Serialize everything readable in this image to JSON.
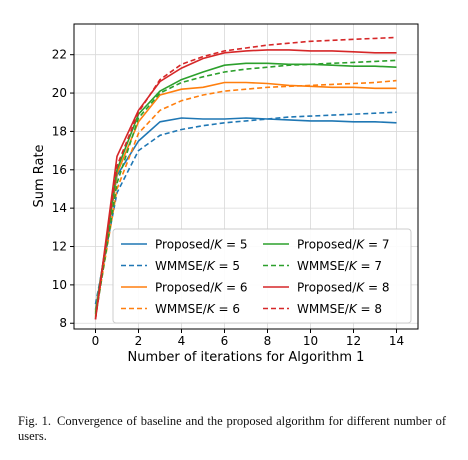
{
  "chart_data": {
    "type": "line",
    "xlabel": "Number of iterations for Algorithm 1",
    "ylabel": "Sum Rate",
    "xlim": [
      -1,
      15
    ],
    "ylim": [
      7.7,
      23.6
    ],
    "xticks": [
      0,
      2,
      4,
      6,
      8,
      10,
      12,
      14
    ],
    "yticks": [
      8,
      10,
      12,
      14,
      16,
      18,
      20,
      22
    ],
    "grid": true,
    "legend_position": "lower-right",
    "x": [
      0,
      1,
      2,
      3,
      4,
      5,
      6,
      7,
      8,
      9,
      10,
      11,
      12,
      13,
      14
    ],
    "series": [
      {
        "name": "Proposed/K = 5",
        "label_prefix": "Proposed/",
        "label_var": "K",
        "label_suffix": " = 5",
        "color": "#1f77b4",
        "dashed": false,
        "values": [
          8.7,
          15.7,
          17.5,
          18.5,
          18.7,
          18.65,
          18.65,
          18.7,
          18.65,
          18.6,
          18.55,
          18.55,
          18.5,
          18.5,
          18.45
        ]
      },
      {
        "name": "WMMSE/K = 5",
        "label_prefix": "WMMSE/",
        "label_var": "K",
        "label_suffix": " = 5",
        "color": "#1f77b4",
        "dashed": true,
        "values": [
          9.0,
          14.8,
          17.0,
          17.8,
          18.1,
          18.3,
          18.45,
          18.55,
          18.65,
          18.75,
          18.8,
          18.85,
          18.9,
          18.95,
          19.0
        ]
      },
      {
        "name": "Proposed/K = 6",
        "label_prefix": "Proposed/",
        "label_var": "K",
        "label_suffix": " = 6",
        "color": "#ff7f0e",
        "dashed": false,
        "values": [
          8.6,
          15.8,
          18.5,
          19.9,
          20.2,
          20.3,
          20.55,
          20.55,
          20.5,
          20.4,
          20.35,
          20.3,
          20.3,
          20.25,
          20.25
        ]
      },
      {
        "name": "WMMSE/K = 6",
        "label_prefix": "WMMSE/",
        "label_var": "K",
        "label_suffix": " = 6",
        "color": "#ff7f0e",
        "dashed": true,
        "values": [
          8.4,
          15.0,
          17.9,
          19.1,
          19.6,
          19.9,
          20.1,
          20.2,
          20.3,
          20.35,
          20.4,
          20.45,
          20.5,
          20.55,
          20.65
        ]
      },
      {
        "name": "Proposed/K = 7",
        "label_prefix": "Proposed/",
        "label_var": "K",
        "label_suffix": " = 7",
        "color": "#2ca02c",
        "dashed": false,
        "values": [
          8.5,
          16.0,
          18.9,
          20.1,
          20.7,
          21.1,
          21.45,
          21.55,
          21.55,
          21.5,
          21.5,
          21.45,
          21.4,
          21.4,
          21.35
        ]
      },
      {
        "name": "WMMSE/K = 7",
        "label_prefix": "WMMSE/",
        "label_var": "K",
        "label_suffix": " = 7",
        "color": "#2ca02c",
        "dashed": true,
        "values": [
          8.3,
          15.3,
          18.7,
          20.0,
          20.55,
          20.85,
          21.1,
          21.25,
          21.35,
          21.45,
          21.5,
          21.55,
          21.6,
          21.65,
          21.7
        ]
      },
      {
        "name": "Proposed/K = 8",
        "label_prefix": "Proposed/",
        "label_var": "K",
        "label_suffix": " = 8",
        "color": "#d62728",
        "dashed": false,
        "values": [
          8.2,
          16.7,
          19.1,
          20.6,
          21.3,
          21.8,
          22.1,
          22.2,
          22.25,
          22.25,
          22.2,
          22.2,
          22.15,
          22.1,
          22.1
        ]
      },
      {
        "name": "WMMSE/K = 8",
        "label_prefix": "WMMSE/",
        "label_var": "K",
        "label_suffix": " = 8",
        "color": "#d62728",
        "dashed": true,
        "values": [
          8.2,
          16.2,
          19.0,
          20.7,
          21.5,
          21.9,
          22.2,
          22.35,
          22.5,
          22.6,
          22.7,
          22.75,
          22.8,
          22.85,
          22.9
        ]
      }
    ]
  },
  "caption": {
    "label": "Fig. 1.",
    "text": "Convergence of baseline and the proposed algorithm for different number of users."
  }
}
